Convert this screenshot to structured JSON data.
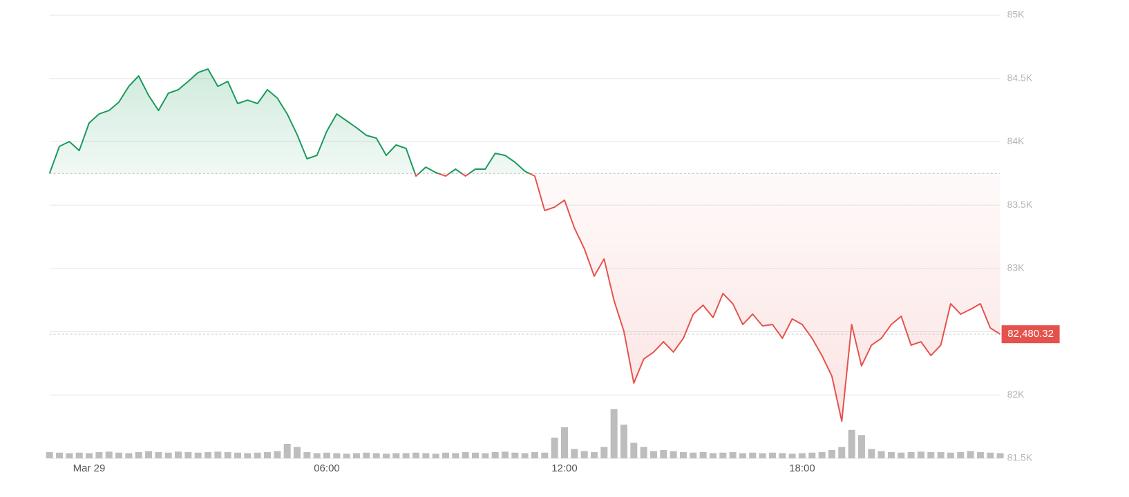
{
  "chart_data": {
    "type": "line",
    "ylim": [
      81500,
      85000
    ],
    "yticks": [
      {
        "value": 81500,
        "label": "81.5K"
      },
      {
        "value": 82000,
        "label": "82K"
      },
      {
        "value": 82500,
        "label": "82.5K"
      },
      {
        "value": 83000,
        "label": "83K"
      },
      {
        "value": 83500,
        "label": "83.5K"
      },
      {
        "value": 84000,
        "label": "84K"
      },
      {
        "value": 84500,
        "label": "84.5K"
      },
      {
        "value": 85000,
        "label": "85K"
      }
    ],
    "xlim": [
      -1,
      23
    ],
    "xticks": [
      {
        "value": 0,
        "label": "Mar 29"
      },
      {
        "value": 6,
        "label": "06:00"
      },
      {
        "value": 12,
        "label": "12:00"
      },
      {
        "value": 18,
        "label": "18:00"
      }
    ],
    "grid": true,
    "baseline": 83750,
    "up_color": "#1a9a5a",
    "down_color": "#e5524c",
    "volume_color": "#bdbdbd",
    "x": [
      -1,
      -0.75,
      -0.5,
      -0.25,
      0,
      0.25,
      0.5,
      0.75,
      1,
      1.25,
      1.5,
      1.75,
      2,
      2.25,
      2.5,
      2.75,
      3,
      3.25,
      3.5,
      3.75,
      4,
      4.25,
      4.5,
      4.75,
      5,
      5.25,
      5.5,
      5.75,
      6,
      6.25,
      6.5,
      6.75,
      7,
      7.25,
      7.5,
      7.75,
      8,
      8.25,
      8.5,
      8.75,
      9,
      9.25,
      9.5,
      9.75,
      10,
      10.25,
      10.5,
      10.75,
      11,
      11.25,
      11.5,
      11.75,
      12,
      12.25,
      12.5,
      12.75,
      13,
      13.25,
      13.5,
      13.75,
      14,
      14.25,
      14.5,
      14.75,
      15,
      15.25,
      15.5,
      15.75,
      16,
      16.25,
      16.5,
      16.75,
      17,
      17.25,
      17.5,
      17.75,
      18,
      18.25,
      18.5,
      18.75,
      19,
      19.25,
      19.5,
      19.75,
      20,
      20.25,
      20.5,
      20.75,
      21,
      21.25,
      21.5,
      21.75,
      22,
      22.25,
      22.5,
      22.75,
      23
    ],
    "values": [
      83750,
      83964,
      84002,
      83931,
      84149,
      84220,
      84247,
      84313,
      84438,
      84520,
      84367,
      84247,
      84384,
      84411,
      84477,
      84547,
      84575,
      84438,
      84477,
      84302,
      84329,
      84302,
      84411,
      84346,
      84220,
      84057,
      83866,
      83893,
      84084,
      84220,
      84166,
      84111,
      84051,
      84029,
      83893,
      83975,
      83948,
      83729,
      83800,
      83757,
      83729,
      83784,
      83729,
      83784,
      83784,
      83909,
      83893,
      83839,
      83768,
      83729,
      83457,
      83484,
      83539,
      83320,
      83157,
      82939,
      83075,
      82748,
      82503,
      82094,
      82284,
      82339,
      82421,
      82339,
      82448,
      82639,
      82710,
      82612,
      82802,
      82721,
      82557,
      82639,
      82546,
      82557,
      82448,
      82601,
      82557,
      82448,
      82312,
      82148,
      81794,
      82557,
      82230,
      82394,
      82448,
      82557,
      82622,
      82394,
      82421,
      82312,
      82394,
      82721,
      82639,
      82677,
      82721,
      82530,
      82480.32
    ],
    "value_labels": [
      null,
      null,
      null,
      null,
      null,
      null,
      null,
      null,
      null,
      null,
      null,
      null,
      null,
      null,
      null,
      null,
      null,
      null,
      null,
      null,
      null,
      null,
      null,
      null,
      null,
      null,
      null,
      null,
      null,
      null,
      null,
      null,
      null,
      null,
      null,
      null,
      null,
      null,
      null,
      null,
      null,
      null,
      null,
      null,
      null,
      null,
      null,
      null,
      null,
      null,
      null,
      null,
      null,
      null,
      null,
      null,
      null,
      null,
      null,
      null,
      null,
      null,
      null,
      null,
      null,
      null,
      null,
      null,
      null,
      null,
      null,
      null,
      null,
      null,
      null,
      null,
      null,
      null,
      null,
      null,
      null,
      null,
      null,
      null,
      null,
      null,
      null,
      null,
      null,
      null,
      null,
      null,
      null,
      null,
      null,
      null,
      "82,480.32"
    ],
    "volume": [
      12,
      11,
      10,
      11,
      10,
      12,
      13,
      11,
      10,
      12,
      14,
      12,
      11,
      13,
      12,
      11,
      12,
      13,
      12,
      11,
      10,
      11,
      12,
      14,
      28,
      22,
      12,
      10,
      11,
      10,
      9,
      10,
      11,
      10,
      9,
      10,
      10,
      11,
      10,
      9,
      11,
      10,
      12,
      11,
      10,
      12,
      13,
      11,
      10,
      12,
      11,
      40,
      60,
      18,
      14,
      12,
      22,
      95,
      65,
      30,
      22,
      14,
      16,
      14,
      12,
      11,
      12,
      10,
      11,
      12,
      10,
      11,
      10,
      11,
      10,
      9,
      10,
      11,
      12,
      16,
      22,
      55,
      45,
      18,
      14,
      12,
      11,
      12,
      13,
      12,
      12,
      11,
      12,
      14,
      12,
      11,
      10
    ]
  }
}
